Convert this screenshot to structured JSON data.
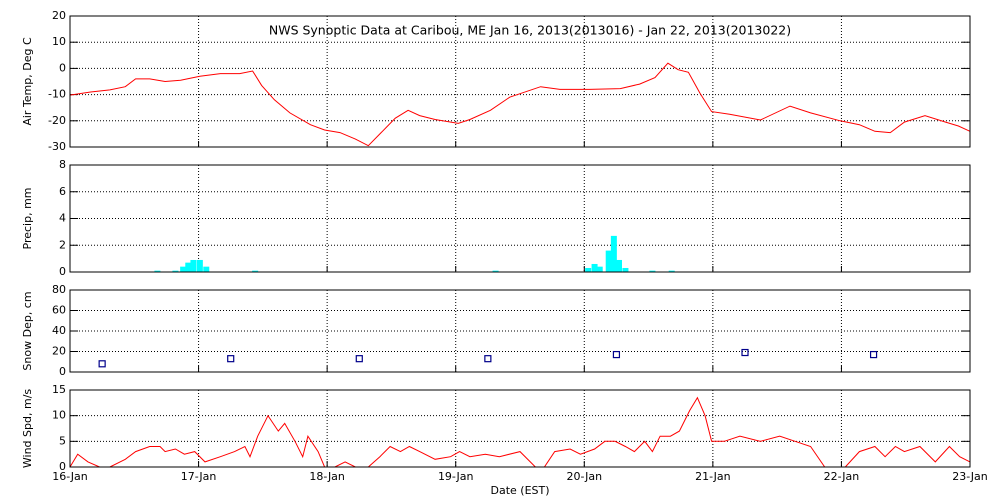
{
  "chart_data": [
    {
      "type": "line",
      "title": "NWS Synoptic Data at Caribou, ME   Jan 16, 2013(2013016) - Jan 22, 2013(2013022)",
      "ylabel": "Air Temp, Deg C",
      "color": "#ff0000",
      "x": [
        0,
        0.16,
        0.31,
        0.43,
        0.51,
        0.62,
        0.74,
        0.86,
        1.01,
        1.17,
        1.32,
        1.42,
        1.49,
        1.59,
        1.71,
        1.87,
        1.98,
        2.1,
        2.22,
        2.32,
        2.41,
        2.53,
        2.63,
        2.72,
        2.84,
        3.02,
        3.11,
        3.27,
        3.42,
        3.66,
        3.81,
        4.04,
        4.28,
        4.43,
        4.55,
        4.65,
        4.73,
        4.81,
        4.9,
        4.99,
        5.13,
        5.37,
        5.6,
        5.76,
        5.99,
        6.14,
        6.26,
        6.38,
        6.49,
        6.65,
        6.81,
        6.91,
        7.0
      ],
      "values": [
        -10.2,
        -9,
        -8.2,
        -7,
        -4,
        -4,
        -5,
        -4.5,
        -3,
        -2,
        -2,
        -1,
        -6.5,
        -12,
        -17,
        -21.5,
        -23.5,
        -24.5,
        -27,
        -29.5,
        -25,
        -19,
        -16,
        -18,
        -19.5,
        -21,
        -19.5,
        -16,
        -11,
        -7,
        -8,
        -8,
        -7.7,
        -6,
        -3.5,
        2,
        -0.5,
        -1.5,
        -9.5,
        -16.5,
        -17.5,
        -19.7,
        -14.4,
        -17,
        -20,
        -21.5,
        -24,
        -24.5,
        -20.5,
        -18,
        -20.5,
        -22,
        -24
      ],
      "xlim": [
        0,
        7
      ],
      "ylim": [
        -30,
        20
      ],
      "yticks": [
        -30,
        -20,
        -10,
        0,
        10,
        20
      ],
      "grid": true
    },
    {
      "type": "bar",
      "ylabel": "Precip, mm",
      "color": "#00ffff",
      "x": [
        0.68,
        0.82,
        0.88,
        0.92,
        0.96,
        1.01,
        1.06,
        1.44,
        3.31,
        4.03,
        4.08,
        4.12,
        4.19,
        4.23,
        4.27,
        4.32,
        4.53,
        4.68
      ],
      "values": [
        0.1,
        0.1,
        0.4,
        0.7,
        0.9,
        0.9,
        0.4,
        0.1,
        0.1,
        0.3,
        0.6,
        0.4,
        1.6,
        2.7,
        0.9,
        0.3,
        0.1,
        0.1
      ],
      "xlim": [
        0,
        7
      ],
      "ylim": [
        0,
        8
      ],
      "yticks": [
        0,
        2,
        4,
        6,
        8
      ],
      "grid": true
    },
    {
      "type": "scatter",
      "ylabel": "Snow Dep, cm",
      "color": "#00008b",
      "x": [
        0.25,
        1.25,
        2.25,
        3.25,
        4.25,
        5.25,
        6.25
      ],
      "values": [
        8,
        13,
        13,
        13,
        17,
        19,
        17
      ],
      "xlim": [
        0,
        7
      ],
      "ylim": [
        0,
        80
      ],
      "yticks": [
        0,
        20,
        40,
        60,
        80
      ],
      "grid": true
    },
    {
      "type": "line",
      "ylabel": "Wind Spd, m/s",
      "xlabel": "Date (EST)",
      "color": "#ff0000",
      "x": [
        0,
        0.06,
        0.14,
        0.23,
        0.31,
        0.43,
        0.51,
        0.62,
        0.7,
        0.74,
        0.82,
        0.89,
        0.97,
        1.05,
        1.17,
        1.28,
        1.36,
        1.4,
        1.46,
        1.54,
        1.62,
        1.67,
        1.75,
        1.81,
        1.85,
        1.93,
        1.98,
        2.06,
        2.14,
        2.22,
        2.32,
        2.41,
        2.49,
        2.57,
        2.64,
        2.72,
        2.84,
        2.96,
        3.03,
        3.11,
        3.23,
        3.34,
        3.5,
        3.62,
        3.69,
        3.77,
        3.89,
        3.97,
        4.08,
        4.16,
        4.24,
        4.32,
        4.39,
        4.47,
        4.53,
        4.59,
        4.67,
        4.74,
        4.82,
        4.88,
        4.94,
        4.99,
        5.09,
        5.21,
        5.37,
        5.52,
        5.64,
        5.76,
        5.87,
        5.95,
        6.03,
        6.14,
        6.26,
        6.34,
        6.42,
        6.49,
        6.61,
        6.73,
        6.84,
        6.92,
        7.0
      ],
      "values": [
        0,
        2.5,
        1,
        0,
        0,
        1.5,
        3,
        4,
        4,
        3,
        3.5,
        2.5,
        3,
        1,
        2,
        3,
        4,
        2,
        6,
        10,
        7,
        8.5,
        5,
        2,
        6,
        3,
        0,
        0,
        1,
        0,
        0,
        2,
        4,
        3,
        4,
        3,
        1.5,
        2,
        3,
        2,
        2.5,
        2,
        3,
        0,
        0,
        3,
        3.5,
        2.5,
        3.5,
        5,
        5,
        4,
        3,
        5,
        3,
        6,
        6,
        7,
        11,
        13.5,
        10,
        5,
        5,
        6,
        5,
        6,
        5,
        4,
        0,
        0,
        0,
        3,
        4,
        2,
        4,
        3,
        4,
        1,
        4,
        2,
        1
      ],
      "xlim": [
        0,
        7
      ],
      "ylim": [
        0,
        15
      ],
      "yticks": [
        0,
        5,
        10,
        15
      ],
      "grid": true,
      "xticks": [
        {
          "value": 0,
          "label": "16-Jan"
        },
        {
          "value": 1,
          "label": "17-Jan"
        },
        {
          "value": 2,
          "label": "18-Jan"
        },
        {
          "value": 3,
          "label": "19-Jan"
        },
        {
          "value": 4,
          "label": "20-Jan"
        },
        {
          "value": 5,
          "label": "21-Jan"
        },
        {
          "value": 6,
          "label": "22-Jan"
        },
        {
          "value": 7,
          "label": "23-Jan"
        }
      ]
    }
  ]
}
